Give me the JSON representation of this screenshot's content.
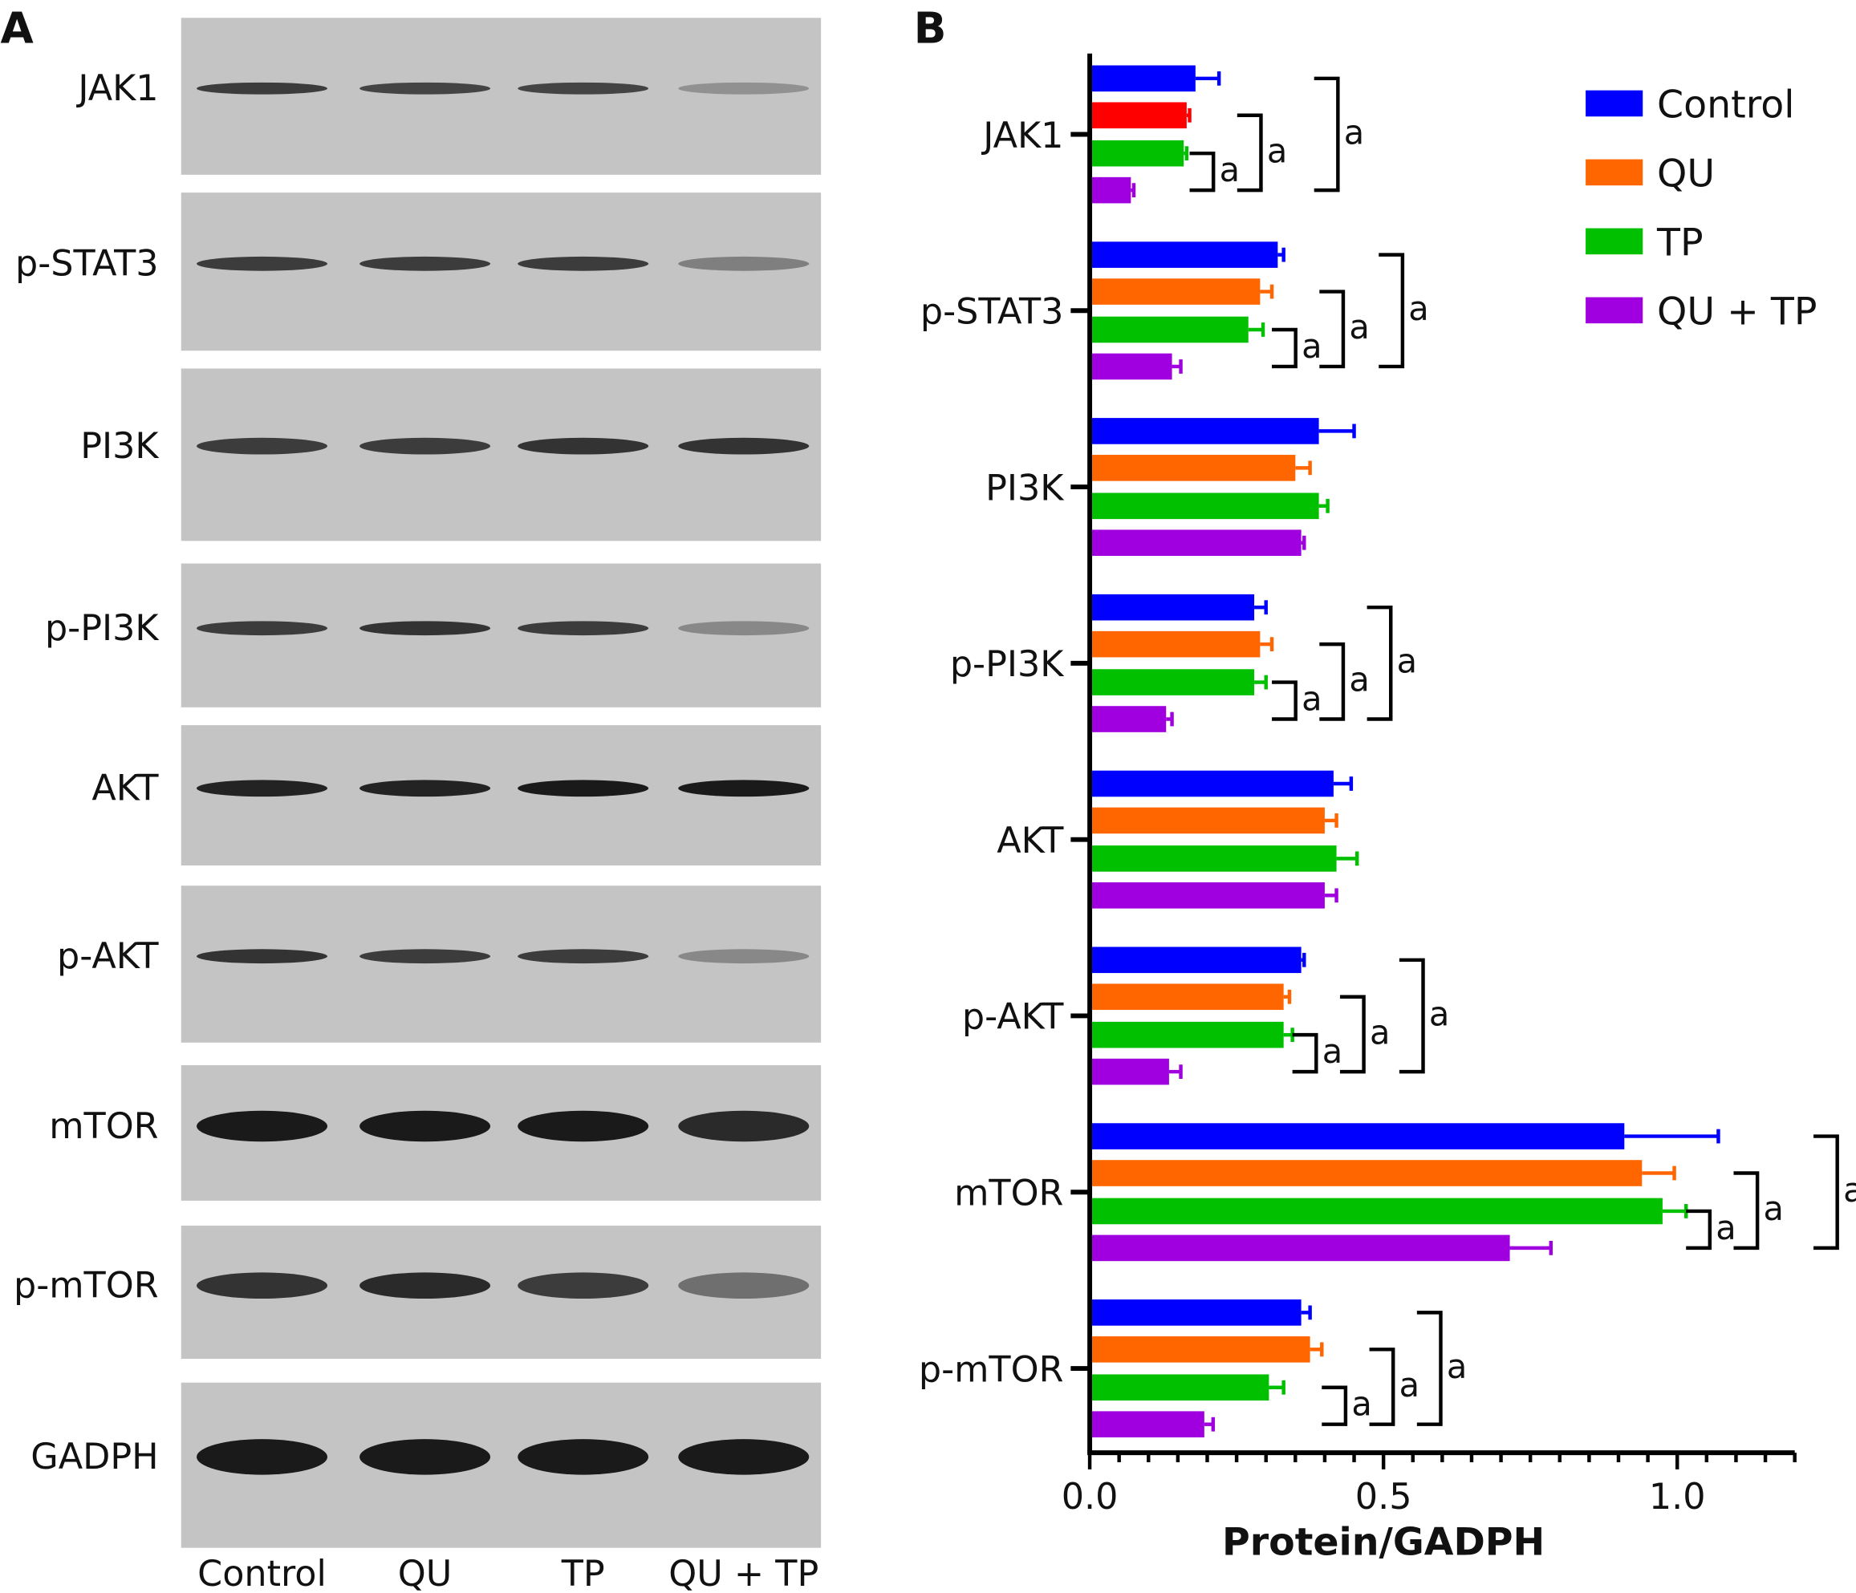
{
  "panel_a": {
    "label": "A",
    "rows": [
      "JAK1",
      "p-STAT3",
      "PI3K",
      "p-PI3K",
      "AKT",
      "p-AKT",
      "mTOR",
      "p-mTOR",
      "GADPH"
    ],
    "lanes": [
      "Control",
      "QU",
      "TP",
      "QU + TP"
    ]
  },
  "chart_data": {
    "type": "bar",
    "orientation": "horizontal",
    "panel_label": "B",
    "categories": [
      "JAK1",
      "p-STAT3",
      "PI3K",
      "p-PI3K",
      "AKT",
      "p-AKT",
      "mTOR",
      "p-mTOR"
    ],
    "series": [
      {
        "name": "Control",
        "color": "#0000ff",
        "values": [
          0.18,
          0.32,
          0.39,
          0.28,
          0.415,
          0.36,
          0.91,
          0.36
        ],
        "errors": [
          0.04,
          0.01,
          0.06,
          0.02,
          0.03,
          0.005,
          0.16,
          0.015
        ]
      },
      {
        "name": "QU",
        "color": "#ff6600",
        "values": [
          0.165,
          0.29,
          0.35,
          0.29,
          0.4,
          0.33,
          0.94,
          0.375
        ],
        "errors": [
          0.005,
          0.02,
          0.025,
          0.02,
          0.02,
          0.01,
          0.055,
          0.02
        ]
      },
      {
        "name": "TP",
        "color": "#00c000",
        "values": [
          0.16,
          0.27,
          0.39,
          0.28,
          0.42,
          0.33,
          0.975,
          0.305
        ],
        "errors": [
          0.005,
          0.025,
          0.015,
          0.02,
          0.035,
          0.015,
          0.04,
          0.025
        ]
      },
      {
        "name": "QU + TP",
        "color": "#a000e0",
        "values": [
          0.07,
          0.14,
          0.36,
          0.13,
          0.4,
          0.135,
          0.715,
          0.195
        ],
        "errors": [
          0.005,
          0.015,
          0.005,
          0.01,
          0.02,
          0.02,
          0.07,
          0.015
        ]
      }
    ],
    "special_colors": {
      "JAK1_QU": "#ff0000"
    },
    "significance": {
      "mark": "a",
      "groups_with_marks": [
        "JAK1",
        "p-STAT3",
        "p-PI3K",
        "p-AKT",
        "mTOR",
        "p-mTOR"
      ],
      "comparisons": [
        "QU + TP vs TP",
        "QU + TP vs QU",
        "QU + TP vs Control"
      ]
    },
    "xlabel": "Protein/GADPH",
    "xlim": [
      0,
      1.2
    ],
    "xticks": [
      "0.0",
      "0.5",
      "1.0"
    ],
    "legend": "top-right"
  }
}
